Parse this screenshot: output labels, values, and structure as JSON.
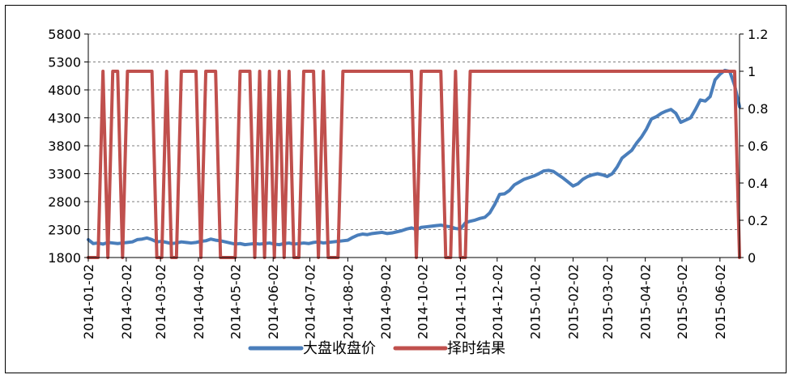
{
  "chart_data": {
    "type": "line",
    "dual_axis": true,
    "x_dates": [
      "2014-01-02",
      "2014-01-06",
      "2014-01-10",
      "2014-01-14",
      "2014-01-18",
      "2014-01-22",
      "2014-01-26",
      "2014-01-30",
      "2014-02-03",
      "2014-02-07",
      "2014-02-11",
      "2014-02-15",
      "2014-02-19",
      "2014-02-23",
      "2014-02-27",
      "2014-03-03",
      "2014-03-07",
      "2014-03-11",
      "2014-03-15",
      "2014-03-19",
      "2014-03-23",
      "2014-03-27",
      "2014-03-31",
      "2014-04-04",
      "2014-04-08",
      "2014-04-12",
      "2014-04-16",
      "2014-04-20",
      "2014-04-24",
      "2014-04-28",
      "2014-05-02",
      "2014-05-06",
      "2014-05-10",
      "2014-05-14",
      "2014-05-18",
      "2014-05-22",
      "2014-05-26",
      "2014-05-30",
      "2014-06-03",
      "2014-06-07",
      "2014-06-11",
      "2014-06-15",
      "2014-06-19",
      "2014-06-23",
      "2014-06-27",
      "2014-07-01",
      "2014-07-05",
      "2014-07-09",
      "2014-07-13",
      "2014-07-17",
      "2014-07-21",
      "2014-07-25",
      "2014-07-29",
      "2014-08-02",
      "2014-08-06",
      "2014-08-10",
      "2014-08-14",
      "2014-08-18",
      "2014-08-22",
      "2014-08-26",
      "2014-08-30",
      "2014-09-03",
      "2014-09-07",
      "2014-09-11",
      "2014-09-15",
      "2014-09-19",
      "2014-09-23",
      "2014-09-27",
      "2014-10-01",
      "2014-10-05",
      "2014-10-09",
      "2014-10-13",
      "2014-10-17",
      "2014-10-21",
      "2014-10-25",
      "2014-10-29",
      "2014-11-02",
      "2014-11-06",
      "2014-11-10",
      "2014-11-14",
      "2014-11-18",
      "2014-11-22",
      "2014-11-26",
      "2014-11-30",
      "2014-12-04",
      "2014-12-08",
      "2014-12-12",
      "2014-12-16",
      "2014-12-20",
      "2014-12-24",
      "2014-12-28",
      "2015-01-01",
      "2015-01-05",
      "2015-01-09",
      "2015-01-13",
      "2015-01-17",
      "2015-01-21",
      "2015-01-25",
      "2015-01-29",
      "2015-02-02",
      "2015-02-06",
      "2015-02-10",
      "2015-02-14",
      "2015-02-18",
      "2015-02-22",
      "2015-02-26",
      "2015-03-02",
      "2015-03-06",
      "2015-03-10",
      "2015-03-14",
      "2015-03-18",
      "2015-03-22",
      "2015-03-26",
      "2015-03-30",
      "2015-04-03",
      "2015-04-07",
      "2015-04-11",
      "2015-04-15",
      "2015-04-19",
      "2015-04-23",
      "2015-04-27",
      "2015-05-01",
      "2015-05-05",
      "2015-05-09",
      "2015-05-13",
      "2015-05-17",
      "2015-05-21",
      "2015-05-25",
      "2015-05-29",
      "2015-06-02",
      "2015-06-06",
      "2015-06-10",
      "2015-06-14",
      "2015-06-18"
    ],
    "x_tick_labels": [
      "2014-01-02",
      "2014-02-02",
      "2014-03-02",
      "2014-04-02",
      "2014-05-02",
      "2014-06-02",
      "2014-07-02",
      "2014-08-02",
      "2014-09-02",
      "2014-10-02",
      "2014-11-02",
      "2014-12-02",
      "2015-01-02",
      "2015-02-02",
      "2015-03-02",
      "2015-04-02",
      "2015-05-02",
      "2015-06-02"
    ],
    "y_left": {
      "min": 1800,
      "max": 5800,
      "ticks": [
        "1800",
        "2300",
        "2800",
        "3300",
        "3800",
        "4300",
        "4800",
        "5300",
        "5800"
      ]
    },
    "y_right": {
      "min": 0,
      "max": 1.2,
      "ticks": [
        "0",
        "0.2",
        "0.4",
        "0.6",
        "0.8",
        "1",
        "1.2"
      ]
    },
    "grid": "dashed horizontal",
    "legend_position": "bottom",
    "series": [
      {
        "name": "大盘收盘价",
        "axis": "left",
        "color": "#4a7ebb",
        "values": [
          2120,
          2050,
          2060,
          2040,
          2070,
          2060,
          2050,
          2060,
          2070,
          2080,
          2120,
          2130,
          2150,
          2120,
          2080,
          2090,
          2070,
          2050,
          2060,
          2080,
          2070,
          2060,
          2070,
          2090,
          2100,
          2130,
          2110,
          2100,
          2080,
          2060,
          2040,
          2050,
          2030,
          2040,
          2050,
          2040,
          2050,
          2060,
          2040,
          2030,
          2050,
          2060,
          2040,
          2050,
          2060,
          2050,
          2070,
          2080,
          2060,
          2070,
          2080,
          2090,
          2100,
          2110,
          2160,
          2200,
          2220,
          2210,
          2230,
          2240,
          2250,
          2230,
          2240,
          2260,
          2280,
          2310,
          2330,
          2300,
          2340,
          2350,
          2360,
          2370,
          2380,
          2360,
          2350,
          2320,
          2310,
          2420,
          2450,
          2470,
          2500,
          2520,
          2600,
          2750,
          2930,
          2940,
          3000,
          3100,
          3150,
          3200,
          3230,
          3260,
          3300,
          3350,
          3360,
          3340,
          3280,
          3220,
          3150,
          3080,
          3120,
          3200,
          3250,
          3280,
          3300,
          3280,
          3250,
          3300,
          3420,
          3580,
          3650,
          3720,
          3850,
          3960,
          4100,
          4280,
          4320,
          4380,
          4420,
          4450,
          4380,
          4220,
          4260,
          4300,
          4450,
          4620,
          4600,
          4680,
          4980,
          5080,
          5150,
          5130,
          4880,
          4500
        ]
      },
      {
        "name": "择时结果",
        "axis": "right",
        "color": "#c0504d",
        "values": [
          0,
          0,
          0,
          1,
          0,
          1,
          1,
          0,
          1,
          1,
          1,
          1,
          1,
          1,
          0,
          0,
          1,
          0,
          0,
          1,
          1,
          1,
          1,
          0,
          1,
          1,
          1,
          0,
          0,
          0,
          0,
          1,
          1,
          1,
          0,
          1,
          0,
          1,
          0,
          1,
          0,
          1,
          0,
          0,
          1,
          1,
          1,
          0,
          1,
          0,
          0,
          0,
          1,
          1,
          1,
          1,
          1,
          1,
          1,
          1,
          1,
          1,
          1,
          1,
          1,
          1,
          1,
          0,
          1,
          1,
          1,
          1,
          1,
          0,
          0,
          1,
          0,
          0,
          1,
          1,
          1,
          1,
          1,
          1,
          1,
          1,
          1,
          1,
          1,
          1,
          1,
          1,
          1,
          1,
          1,
          1,
          1,
          1,
          1,
          1,
          1,
          1,
          1,
          1,
          1,
          1,
          1,
          1,
          1,
          1,
          1,
          1,
          1,
          1,
          1,
          1,
          1,
          1,
          1,
          1,
          1,
          1,
          1,
          1,
          1,
          1,
          1,
          1,
          1,
          1,
          1,
          1,
          1,
          0
        ]
      }
    ]
  }
}
